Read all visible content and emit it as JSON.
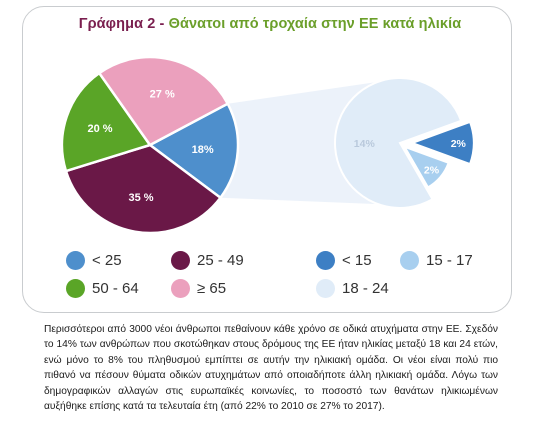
{
  "title": {
    "lead": "Γράφημα 2 - ",
    "rest": "Θάνατοι από τροχαία στην ΕΕ κατά ηλικία"
  },
  "chart_data": [
    {
      "type": "pie",
      "title": "Γράφημα 2 - Θάνατοι από τροχαία στην ΕΕ κατά ηλικία",
      "slices": [
        {
          "label": "< 25",
          "value": 18,
          "display": "18%",
          "color": "#4e8fcc"
        },
        {
          "label": "25 - 49",
          "value": 35,
          "display": "35 %",
          "color": "#6a1847"
        },
        {
          "label": "50 - 64",
          "value": 20,
          "display": "20 %",
          "color": "#5aa527"
        },
        {
          "label": "≥ 65",
          "value": 27,
          "display": "27 %",
          "color": "#eba0bd"
        }
      ]
    },
    {
      "type": "pie",
      "title": "",
      "slices": [
        {
          "label": "18 - 24",
          "value": 14,
          "display": "14%",
          "color": "#e0ecf8"
        },
        {
          "label": "15 - 17",
          "value": 2,
          "display": "2%",
          "color": "#a8cfef"
        },
        {
          "label": "< 15",
          "value": 2,
          "display": "2%",
          "color": "#3d7fc4"
        }
      ]
    }
  ],
  "legend_main": [
    {
      "label": "< 25",
      "color": "#4e8fcc"
    },
    {
      "label": "25 - 49",
      "color": "#6a1847"
    },
    {
      "label": "50 - 64",
      "color": "#5aa527"
    },
    {
      "label": "≥ 65",
      "color": "#eba0bd"
    }
  ],
  "legend_sub": [
    {
      "label": "< 15",
      "color": "#3d7fc4"
    },
    {
      "label": "15 - 17",
      "color": "#a8cfef"
    },
    {
      "label": "18 - 24",
      "color": "#e0ecf8"
    }
  ],
  "body_text": "Περισσότεροι από 3000 νέοι άνθρωποι πεθαίνουν κάθε χρόνο σε οδικά ατυχήματα στην ΕΕ. Σχεδόν το 14% των ανθρώπων που σκοτώθηκαν στους δρόμους της ΕΕ ήταν ηλικίας μεταξύ 18 και 24 ετών, ενώ μόνο το 8% του πληθυσμού εμπίπτει σε αυτήν την ηλικιακή ομάδα. Οι νέοι είναι πολύ πιο πιθανό να πέσουν θύματα οδικών ατυχημάτων από οποιαδήποτε άλλη ηλικιακή ομάδα. Λόγω των δημογραφικών αλλαγών στις ευρωπαϊκές κοινωνίες, το ποσοστό των θανάτων ηλικιωμένων αυξήθηκε επίσης κατά τα τελευταία έτη (από 22% το 2010 σε 27% το 2017)."
}
